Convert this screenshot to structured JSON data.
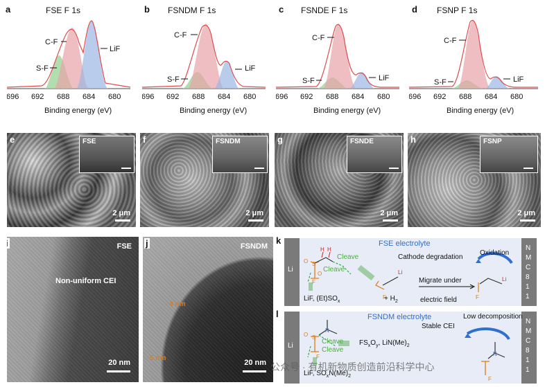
{
  "xps_panels": [
    {
      "letter": "a",
      "title": "FSE F 1s",
      "peaks": {
        "cf": "C-F",
        "sf": "S-F",
        "lif": "LiF"
      }
    },
    {
      "letter": "b",
      "title": "FSNDM F 1s",
      "peaks": {
        "cf": "C-F",
        "sf": "S-F",
        "lif": "LiF"
      }
    },
    {
      "letter": "c",
      "title": "FSNDE F 1s",
      "peaks": {
        "cf": "C-F",
        "sf": "S-F",
        "lif": "LiF"
      }
    },
    {
      "letter": "d",
      "title": "FSNP F 1s",
      "peaks": {
        "cf": "C-F",
        "sf": "S-F",
        "lif": "LiF"
      }
    }
  ],
  "xps_axis": {
    "ticks": [
      "696",
      "692",
      "688",
      "684",
      "680"
    ],
    "xlabel": "Binding energy (eV)"
  },
  "sem_panels": [
    {
      "letter": "e",
      "inset": "FSE",
      "scale": "2 μm"
    },
    {
      "letter": "f",
      "inset": "FSNDM",
      "scale": "2 μm"
    },
    {
      "letter": "g",
      "inset": "FSNDE",
      "scale": "2 μm"
    },
    {
      "letter": "h",
      "inset": "FSNP",
      "scale": "2 μm"
    }
  ],
  "tem_panels": [
    {
      "letter": "i",
      "label": "FSE",
      "annotation": "Non-uniform CEI",
      "scale": "20 nm"
    },
    {
      "letter": "j",
      "label": "FSNDM",
      "annotations": [
        "4 nm",
        "5 nm"
      ],
      "scale": "20 nm"
    }
  ],
  "scheme_k": {
    "letter": "k",
    "title": "FSE electrolyte",
    "li": "Li",
    "cleave1": "Cleave",
    "cleave2": "Cleave",
    "product1": "LiF, (Et)SO",
    "product1_sub": "x",
    "h2": "+ H",
    "h2_sub": "2",
    "cathode": "Cathode degradation",
    "oxidation": "Oxidation",
    "migrate1": "Migrate under",
    "migrate2": "electric field",
    "nmc": [
      "N",
      "M",
      "C",
      "8",
      "1",
      "1"
    ],
    "atoms": {
      "h": "H",
      "f": "F",
      "s": "S",
      "o": "O",
      "li": "Li"
    }
  },
  "scheme_l": {
    "letter": "l",
    "title": "FSNDM electrolyte",
    "li": "Li",
    "cleave1": "Cleave",
    "cleave2": "Cleave",
    "fsxoy_parts": [
      "FS",
      "x",
      "O",
      "y",
      ", LiN(Me)",
      "2"
    ],
    "lif_parts": [
      "LiF, SO",
      "x",
      "N(Me)",
      "2"
    ],
    "low_decomp": "Low decomposition",
    "stable": "Stable CEI",
    "nmc": [
      "N",
      "M",
      "C",
      "8",
      "1",
      "1"
    ],
    "atoms": {
      "n": "N",
      "f": "F",
      "s": "S",
      "o": "O"
    }
  },
  "watermark": "公众号 · 有机新物质创造前沿科学中心",
  "colors": {
    "cf": "#e8a3a8",
    "lif": "#9cb6e3",
    "sf": "#9fd49a",
    "fit": "#e04a4a",
    "data": "#c46a6a",
    "scheme_bg": "#e8ecf6",
    "li_bar": "#7a7a7a",
    "orange": "#e07b12",
    "blue": "#2f6fd1",
    "green": "#4caf3c",
    "red": "#d32020"
  }
}
